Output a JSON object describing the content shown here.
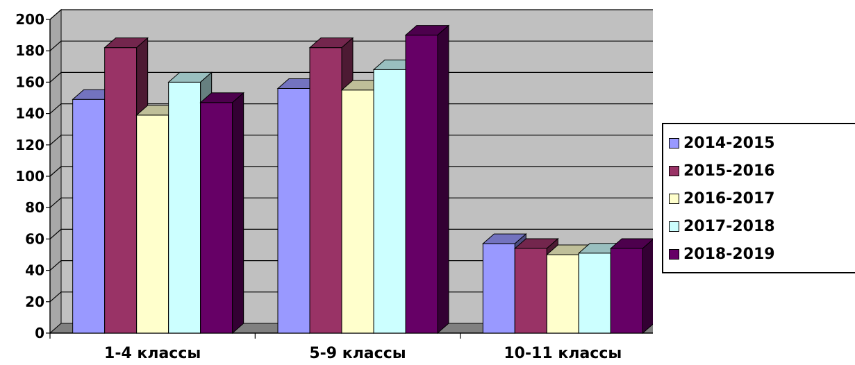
{
  "chart_data": {
    "type": "bar",
    "title": "",
    "xlabel": "",
    "ylabel": "",
    "ylim": [
      0,
      200
    ],
    "yticks": [
      0,
      20,
      40,
      60,
      80,
      100,
      120,
      140,
      160,
      180,
      200
    ],
    "categories": [
      "1-4 классы",
      "5-9 классы",
      "10-11 классы"
    ],
    "series": [
      {
        "name": "2014-2015",
        "values": [
          149,
          156,
          57
        ],
        "color": "#9999ff"
      },
      {
        "name": "2015-2016",
        "values": [
          182,
          182,
          54
        ],
        "color": "#993366"
      },
      {
        "name": "2016-2017",
        "values": [
          139,
          155,
          50
        ],
        "color": "#ffffcc"
      },
      {
        "name": "2017-2018",
        "values": [
          160,
          168,
          51
        ],
        "color": "#ccffff"
      },
      {
        "name": "2018-2019",
        "values": [
          147,
          190,
          54
        ],
        "color": "#660066"
      }
    ],
    "legend_position": "right",
    "grid": true,
    "plot_background": "#c0c0c0"
  }
}
